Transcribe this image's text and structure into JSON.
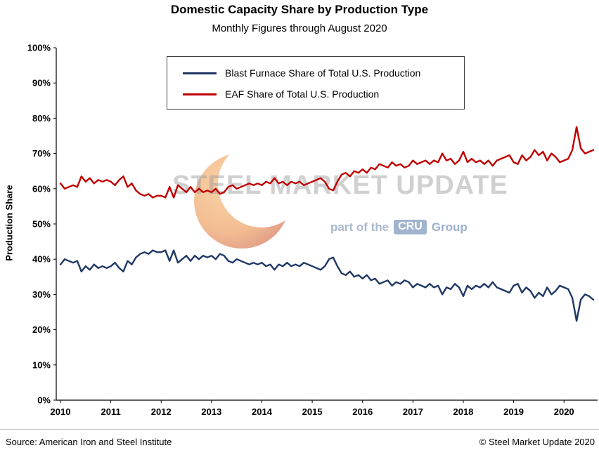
{
  "page": {
    "source": "Source: American Iron and Steel Institute",
    "copyright": "© Steel Market Update 2020"
  },
  "watermark": {
    "line1": "STEEL MARKET UPDATE",
    "part_of": "part of the",
    "cru": "CRU",
    "group": "Group"
  },
  "chart_data": {
    "type": "line",
    "title": "Domestic Capacity Share by Production Type",
    "subtitle": "Monthly Figures through August 2020",
    "xlabel": "",
    "ylabel": "Production Share",
    "ylim": [
      0,
      100
    ],
    "y_ticks": [
      "0%",
      "10%",
      "20%",
      "30%",
      "40%",
      "50%",
      "60%",
      "70%",
      "80%",
      "90%",
      "100%"
    ],
    "x_ticks": [
      "2010",
      "2011",
      "2012",
      "2013",
      "2014",
      "2015",
      "2016",
      "2017",
      "2018",
      "2019",
      "2020"
    ],
    "x_unit": "month",
    "x_range": "January 2010 - August 2020",
    "grid": false,
    "legend_position": "top-center-inside",
    "series": [
      {
        "name": "Blast Furnace Share of Total U.S. Production",
        "color": "#1F3864",
        "values": [
          38.5,
          40,
          39.5,
          39,
          39.5,
          36.5,
          38,
          37,
          38.5,
          37.5,
          38,
          37.5,
          38,
          39,
          37.5,
          36.5,
          39.5,
          38.5,
          40.5,
          41.5,
          42,
          41.5,
          42.5,
          42,
          42,
          42.5,
          39.5,
          42.5,
          39,
          40,
          41,
          39.5,
          41,
          40,
          41,
          40.5,
          41,
          40,
          41.5,
          41,
          39.5,
          39,
          40,
          39.5,
          39,
          38.5,
          39,
          38.5,
          39,
          38,
          38.5,
          37,
          38.5,
          38,
          39,
          38,
          38.5,
          38,
          39,
          38.5,
          38,
          37.5,
          37,
          38,
          40,
          40.5,
          38,
          36,
          35.5,
          36.5,
          35,
          35.5,
          34.5,
          35.5,
          34,
          34.5,
          33,
          33.5,
          34,
          32.5,
          33.5,
          33,
          34,
          33.5,
          32,
          33,
          32.5,
          32,
          33,
          32,
          32.5,
          30,
          32,
          31.5,
          33,
          32,
          29.5,
          32.5,
          31.5,
          32.5,
          32,
          33,
          32,
          33.5,
          32,
          31.5,
          31,
          30.5,
          32.5,
          33,
          30.5,
          32,
          31,
          29,
          30.5,
          29.5,
          32,
          30,
          31,
          32.5,
          32,
          31.5,
          29,
          22.5,
          28.5,
          30,
          29.5,
          28.5
        ]
      },
      {
        "name": "EAF Share of Total U.S. Production",
        "color": "#C00000",
        "values": [
          61.5,
          60,
          60.5,
          61,
          60.5,
          63.5,
          62,
          63,
          61.5,
          62.5,
          62,
          62.5,
          62,
          61,
          62.5,
          63.5,
          60.5,
          61.5,
          59.5,
          58.5,
          58,
          58.5,
          57.5,
          58,
          58,
          57.5,
          60.5,
          57.5,
          61,
          60,
          59,
          60.5,
          59,
          60,
          59,
          59.5,
          59,
          60,
          58.5,
          59,
          60.5,
          61,
          60,
          60.5,
          61,
          61.5,
          61,
          61.5,
          61,
          62,
          61.5,
          63,
          61.5,
          62,
          61,
          62,
          61.5,
          62,
          61,
          61.5,
          62,
          62.5,
          63,
          62,
          60,
          59.5,
          62,
          64,
          64.5,
          63.5,
          65,
          64.5,
          65.5,
          64.5,
          66,
          65.5,
          67,
          66.5,
          66,
          67.5,
          66.5,
          67,
          66,
          66.5,
          68,
          67,
          67.5,
          68,
          67,
          68,
          67.5,
          70,
          68,
          68.5,
          67,
          68,
          70.5,
          67.5,
          68.5,
          67.5,
          68,
          67,
          68,
          66.5,
          68,
          68.5,
          69,
          69.5,
          67.5,
          67,
          69.5,
          68,
          69,
          71,
          69.5,
          70.5,
          68,
          70,
          69,
          67.5,
          68,
          68.5,
          71,
          77.5,
          71.5,
          70,
          70.5,
          71
        ]
      }
    ]
  }
}
